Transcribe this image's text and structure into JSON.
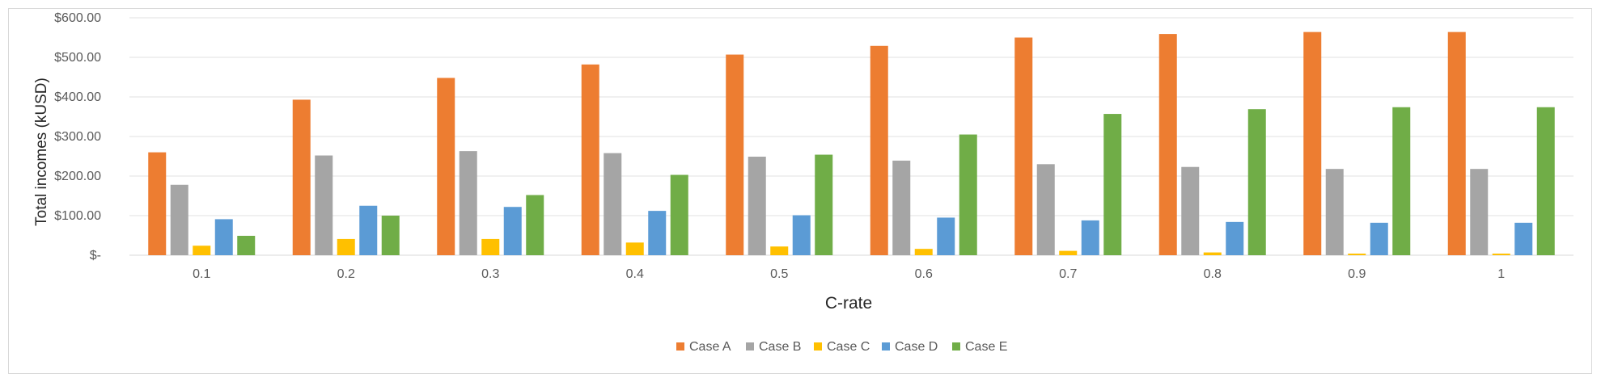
{
  "chart_data": {
    "type": "bar",
    "title": "",
    "xlabel": "C-rate",
    "ylabel": "Total incomes (kUSD)",
    "ylim": [
      0,
      600
    ],
    "yticks": [
      0,
      100,
      200,
      300,
      400,
      500,
      600
    ],
    "ytick_labels": [
      "$-",
      "$100.00",
      "$200.00",
      "$300.00",
      "$400.00",
      "$500.00",
      "$600.00"
    ],
    "categories": [
      "0.1",
      "0.2",
      "0.3",
      "0.4",
      "0.5",
      "0.6",
      "0.7",
      "0.8",
      "0.9",
      "1"
    ],
    "grid": true,
    "legend": "bottom-center",
    "series": [
      {
        "name": "Case A",
        "color": "#ED7D31",
        "values": [
          260,
          393,
          448,
          482,
          507,
          529,
          550,
          559,
          564,
          564
        ]
      },
      {
        "name": "Case B",
        "color": "#A5A5A5",
        "values": [
          178,
          252,
          263,
          258,
          249,
          239,
          230,
          223,
          218,
          218
        ]
      },
      {
        "name": "Case C",
        "color": "#FFC000",
        "values": [
          24,
          41,
          41,
          32,
          22,
          16,
          11,
          7,
          4,
          4
        ]
      },
      {
        "name": "Case D",
        "color": "#5B9BD5",
        "values": [
          91,
          125,
          122,
          112,
          101,
          95,
          88,
          84,
          82,
          82
        ]
      },
      {
        "name": "Case E",
        "color": "#70AD47",
        "values": [
          49,
          100,
          152,
          203,
          254,
          305,
          357,
          369,
          374,
          374
        ]
      }
    ]
  }
}
